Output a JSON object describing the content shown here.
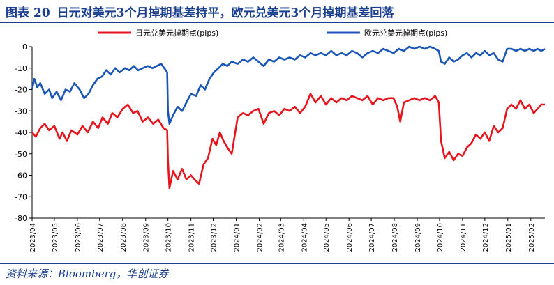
{
  "header": {
    "figure_label": "图表",
    "figure_number": "20",
    "title": "日元对美元3个月掉期基差持平，欧元兑美元3个月掉期基差回落"
  },
  "source": "资料来源：Bloomberg，华创证券",
  "chart_data": {
    "type": "line",
    "title": "日元对美元3个月掉期基差持平，欧元兑美元3个月掉期基差回落",
    "xlabel": "",
    "ylabel": "",
    "x_ticks": [
      "2023/04",
      "2023/05",
      "2023/06",
      "2023/07",
      "2023/08",
      "2023/09",
      "2023/10",
      "2023/11",
      "2023/12",
      "2024/01",
      "2024/02",
      "2024/03",
      "2024/04",
      "2024/05",
      "2024/06",
      "2024/07",
      "2024/08",
      "2024/09",
      "2024/10",
      "2024/11",
      "2024/12",
      "2025/01",
      "2025/02"
    ],
    "y_ticks": [
      "0",
      "-10",
      "-20",
      "-30",
      "-40",
      "-50",
      "-60",
      "-70",
      "-80"
    ],
    "ylim": [
      -80,
      0
    ],
    "xlim": [
      "2023-04-01",
      "2025-02-20"
    ],
    "legend_position": "top",
    "grid": false,
    "series": [
      {
        "name": "日元兑美元掉期点(pips)",
        "color": "#e8141c",
        "points": [
          [
            "2023-04-01",
            -40
          ],
          [
            "2023-04-06",
            -42
          ],
          [
            "2023-04-12",
            -38
          ],
          [
            "2023-04-18",
            -36
          ],
          [
            "2023-04-24",
            -39
          ],
          [
            "2023-05-01",
            -37
          ],
          [
            "2023-05-08",
            -43
          ],
          [
            "2023-05-12",
            -40
          ],
          [
            "2023-05-18",
            -44
          ],
          [
            "2023-05-24",
            -39
          ],
          [
            "2023-06-01",
            -41
          ],
          [
            "2023-06-08",
            -37
          ],
          [
            "2023-06-15",
            -40
          ],
          [
            "2023-06-22",
            -35
          ],
          [
            "2023-06-29",
            -38
          ],
          [
            "2023-07-05",
            -33
          ],
          [
            "2023-07-12",
            -36
          ],
          [
            "2023-07-18",
            -31
          ],
          [
            "2023-07-25",
            -33
          ],
          [
            "2023-08-01",
            -29
          ],
          [
            "2023-08-08",
            -27
          ],
          [
            "2023-08-15",
            -31
          ],
          [
            "2023-08-21",
            -30
          ],
          [
            "2023-08-28",
            -35
          ],
          [
            "2023-09-04",
            -33
          ],
          [
            "2023-09-11",
            -36
          ],
          [
            "2023-09-18",
            -34
          ],
          [
            "2023-09-25",
            -38
          ],
          [
            "2023-09-30",
            -39
          ],
          [
            "2023-10-01",
            -53
          ],
          [
            "2023-10-03",
            -66
          ],
          [
            "2023-10-08",
            -58
          ],
          [
            "2023-10-14",
            -62
          ],
          [
            "2023-10-20",
            -57
          ],
          [
            "2023-10-26",
            -62
          ],
          [
            "2023-11-01",
            -60
          ],
          [
            "2023-11-06",
            -62
          ],
          [
            "2023-11-12",
            -64
          ],
          [
            "2023-11-18",
            -55
          ],
          [
            "2023-11-24",
            -52
          ],
          [
            "2023-11-30",
            -43
          ],
          [
            "2023-12-05",
            -46
          ],
          [
            "2023-12-10",
            -40
          ],
          [
            "2023-12-15",
            -44
          ],
          [
            "2023-12-20",
            -47
          ],
          [
            "2023-12-26",
            -50
          ],
          [
            "2024-01-03",
            -33
          ],
          [
            "2024-01-10",
            -31
          ],
          [
            "2024-01-17",
            -32
          ],
          [
            "2024-01-24",
            -30
          ],
          [
            "2024-01-31",
            -29
          ],
          [
            "2024-02-07",
            -36
          ],
          [
            "2024-02-14",
            -31
          ],
          [
            "2024-02-21",
            -30
          ],
          [
            "2024-02-28",
            -32
          ],
          [
            "2024-03-06",
            -29
          ],
          [
            "2024-03-13",
            -30
          ],
          [
            "2024-03-20",
            -28
          ],
          [
            "2024-03-27",
            -31
          ],
          [
            "2024-04-03",
            -28
          ],
          [
            "2024-04-10",
            -22
          ],
          [
            "2024-04-17",
            -26
          ],
          [
            "2024-04-24",
            -23
          ],
          [
            "2024-05-01",
            -27
          ],
          [
            "2024-05-08",
            -24
          ],
          [
            "2024-05-15",
            -26
          ],
          [
            "2024-05-22",
            -24
          ],
          [
            "2024-05-29",
            -25
          ],
          [
            "2024-06-05",
            -23
          ],
          [
            "2024-06-12",
            -24
          ],
          [
            "2024-06-19",
            -25
          ],
          [
            "2024-06-26",
            -23
          ],
          [
            "2024-07-03",
            -27
          ],
          [
            "2024-07-10",
            -24
          ],
          [
            "2024-07-17",
            -25
          ],
          [
            "2024-07-24",
            -24
          ],
          [
            "2024-07-31",
            -24
          ],
          [
            "2024-08-05",
            -28
          ],
          [
            "2024-08-09",
            -35
          ],
          [
            "2024-08-14",
            -26
          ],
          [
            "2024-08-21",
            -25
          ],
          [
            "2024-08-28",
            -24
          ],
          [
            "2024-09-04",
            -25
          ],
          [
            "2024-09-11",
            -24
          ],
          [
            "2024-09-18",
            -25
          ],
          [
            "2024-09-25",
            -23
          ],
          [
            "2024-09-30",
            -26
          ],
          [
            "2024-10-03",
            -44
          ],
          [
            "2024-10-08",
            -52
          ],
          [
            "2024-10-14",
            -49
          ],
          [
            "2024-10-20",
            -53
          ],
          [
            "2024-10-26",
            -50
          ],
          [
            "2024-11-01",
            -51
          ],
          [
            "2024-11-07",
            -47
          ],
          [
            "2024-11-13",
            -45
          ],
          [
            "2024-11-19",
            -41
          ],
          [
            "2024-11-25",
            -43
          ],
          [
            "2024-12-01",
            -40
          ],
          [
            "2024-12-07",
            -44
          ],
          [
            "2024-12-13",
            -37
          ],
          [
            "2024-12-19",
            -40
          ],
          [
            "2024-12-25",
            -38
          ],
          [
            "2024-12-31",
            -29
          ],
          [
            "2025-01-06",
            -27
          ],
          [
            "2025-01-12",
            -29
          ],
          [
            "2025-01-18",
            -25
          ],
          [
            "2025-01-24",
            -29
          ],
          [
            "2025-01-30",
            -27
          ],
          [
            "2025-02-05",
            -31
          ],
          [
            "2025-02-10",
            -29
          ],
          [
            "2025-02-15",
            -27
          ],
          [
            "2025-02-20",
            -27
          ]
        ]
      },
      {
        "name": "欧元兑美元掉期点(pips)",
        "color": "#1a56b8",
        "points": [
          [
            "2023-04-01",
            -20
          ],
          [
            "2023-04-04",
            -15
          ],
          [
            "2023-04-08",
            -19
          ],
          [
            "2023-04-12",
            -17
          ],
          [
            "2023-04-18",
            -22
          ],
          [
            "2023-04-24",
            -20
          ],
          [
            "2023-04-28",
            -24
          ],
          [
            "2023-05-04",
            -21
          ],
          [
            "2023-05-10",
            -25
          ],
          [
            "2023-05-16",
            -20
          ],
          [
            "2023-05-22",
            -21
          ],
          [
            "2023-05-28",
            -17
          ],
          [
            "2023-06-04",
            -20
          ],
          [
            "2023-06-10",
            -24
          ],
          [
            "2023-06-16",
            -22
          ],
          [
            "2023-06-22",
            -18
          ],
          [
            "2023-06-28",
            -15
          ],
          [
            "2023-07-04",
            -14
          ],
          [
            "2023-07-10",
            -11
          ],
          [
            "2023-07-16",
            -13
          ],
          [
            "2023-07-22",
            -10
          ],
          [
            "2023-07-28",
            -12
          ],
          [
            "2023-08-04",
            -10
          ],
          [
            "2023-08-10",
            -11
          ],
          [
            "2023-08-16",
            -9
          ],
          [
            "2023-08-22",
            -11
          ],
          [
            "2023-08-28",
            -10
          ],
          [
            "2023-09-04",
            -9
          ],
          [
            "2023-09-10",
            -10
          ],
          [
            "2023-09-16",
            -9
          ],
          [
            "2023-09-22",
            -8
          ],
          [
            "2023-09-28",
            -11
          ],
          [
            "2023-09-30",
            -12
          ],
          [
            "2023-10-01",
            -30
          ],
          [
            "2023-10-03",
            -36
          ],
          [
            "2023-10-08",
            -32
          ],
          [
            "2023-10-14",
            -28
          ],
          [
            "2023-10-20",
            -30
          ],
          [
            "2023-10-26",
            -26
          ],
          [
            "2023-11-01",
            -22
          ],
          [
            "2023-11-08",
            -23
          ],
          [
            "2023-11-14",
            -18
          ],
          [
            "2023-11-20",
            -20
          ],
          [
            "2023-11-26",
            -15
          ],
          [
            "2023-12-02",
            -12
          ],
          [
            "2023-12-08",
            -10
          ],
          [
            "2023-12-14",
            -8
          ],
          [
            "2023-12-20",
            -9
          ],
          [
            "2023-12-26",
            -7
          ],
          [
            "2024-01-03",
            -8
          ],
          [
            "2024-01-10",
            -6
          ],
          [
            "2024-01-17",
            -7
          ],
          [
            "2024-01-24",
            -5
          ],
          [
            "2024-01-31",
            -7
          ],
          [
            "2024-02-07",
            -9
          ],
          [
            "2024-02-14",
            -6
          ],
          [
            "2024-02-21",
            -7
          ],
          [
            "2024-02-28",
            -5
          ],
          [
            "2024-03-06",
            -6
          ],
          [
            "2024-03-13",
            -5
          ],
          [
            "2024-03-20",
            -6
          ],
          [
            "2024-03-27",
            -4
          ],
          [
            "2024-04-03",
            -5
          ],
          [
            "2024-04-10",
            -3
          ],
          [
            "2024-04-17",
            -4
          ],
          [
            "2024-04-24",
            -3
          ],
          [
            "2024-05-01",
            -4
          ],
          [
            "2024-05-08",
            -2
          ],
          [
            "2024-05-15",
            -4
          ],
          [
            "2024-05-22",
            -3
          ],
          [
            "2024-05-29",
            -4
          ],
          [
            "2024-06-05",
            -2
          ],
          [
            "2024-06-12",
            -3
          ],
          [
            "2024-06-19",
            -5
          ],
          [
            "2024-06-26",
            -3
          ],
          [
            "2024-07-03",
            -2
          ],
          [
            "2024-07-10",
            -3
          ],
          [
            "2024-07-17",
            -1
          ],
          [
            "2024-07-24",
            -2
          ],
          [
            "2024-07-31",
            -3
          ],
          [
            "2024-08-07",
            -1
          ],
          [
            "2024-08-14",
            -2
          ],
          [
            "2024-08-21",
            0
          ],
          [
            "2024-08-28",
            -1
          ],
          [
            "2024-09-04",
            0
          ],
          [
            "2024-09-11",
            -1
          ],
          [
            "2024-09-18",
            0
          ],
          [
            "2024-09-25",
            -1
          ],
          [
            "2024-09-30",
            -2
          ],
          [
            "2024-10-03",
            -7
          ],
          [
            "2024-10-08",
            -8
          ],
          [
            "2024-10-14",
            -5
          ],
          [
            "2024-10-20",
            -7
          ],
          [
            "2024-10-26",
            -6
          ],
          [
            "2024-11-01",
            -4
          ],
          [
            "2024-11-07",
            -3
          ],
          [
            "2024-11-13",
            -5
          ],
          [
            "2024-11-19",
            -3
          ],
          [
            "2024-11-25",
            -4
          ],
          [
            "2024-12-01",
            -2
          ],
          [
            "2024-12-07",
            -4
          ],
          [
            "2024-12-13",
            -3
          ],
          [
            "2024-12-19",
            -6
          ],
          [
            "2024-12-25",
            -7
          ],
          [
            "2024-12-31",
            -1
          ],
          [
            "2025-01-06",
            -1
          ],
          [
            "2025-01-12",
            -2
          ],
          [
            "2025-01-18",
            -1
          ],
          [
            "2025-01-24",
            -2
          ],
          [
            "2025-01-30",
            -1
          ],
          [
            "2025-02-05",
            -2
          ],
          [
            "2025-02-10",
            -1
          ],
          [
            "2025-02-15",
            -2
          ],
          [
            "2025-02-20",
            -1
          ]
        ]
      }
    ]
  }
}
